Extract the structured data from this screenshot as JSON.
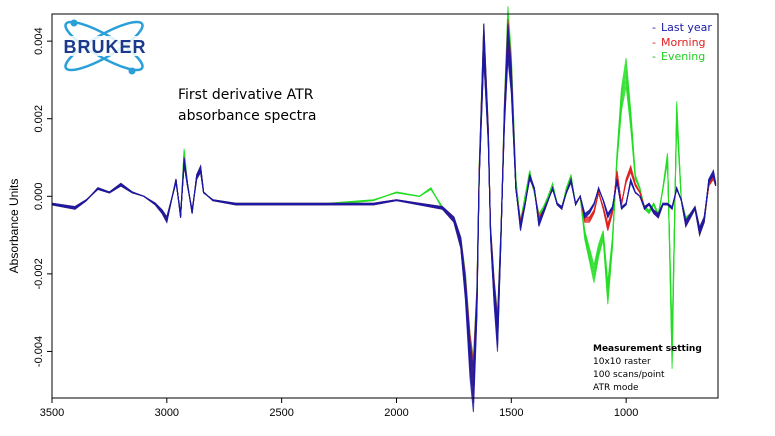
{
  "logo": {
    "text": "BRUKER",
    "color": "#1b3a8c",
    "orbit_color": "#2a9fd8"
  },
  "annotation": {
    "title_line1": "First derivative ATR",
    "title_line2": "absorbance spectra"
  },
  "measurement": {
    "heading": "Measurement setting",
    "lines": [
      "10x10 raster",
      "100 scans/point",
      "ATR mode"
    ]
  },
  "chart_data": {
    "type": "line",
    "title": "",
    "xlabel": "",
    "ylabel": "Absorbance Units",
    "xlim": [
      3500,
      600
    ],
    "ylim": [
      -0.0052,
      0.0047
    ],
    "x_ticks": [
      3500,
      3000,
      2500,
      2000,
      1500,
      1000
    ],
    "x_tick_labels": [
      "3500",
      "3000",
      "2500",
      "2000",
      "1500",
      "1000"
    ],
    "y_ticks": [
      -0.004,
      -0.002,
      0.0,
      0.002,
      0.004
    ],
    "y_tick_labels": [
      "-0.004",
      "-0.002",
      "0.000",
      "0.002",
      "0.004"
    ],
    "grid": false,
    "legend_position": "top-right",
    "series": [
      {
        "name": "Last year",
        "color": "#1a1aa6",
        "x": [
          3500,
          3400,
          3350,
          3300,
          3250,
          3200,
          3150,
          3100,
          3050,
          3020,
          3000,
          2960,
          2940,
          2925,
          2910,
          2890,
          2870,
          2853,
          2840,
          2800,
          2700,
          2500,
          2300,
          2100,
          2000,
          1900,
          1800,
          1750,
          1720,
          1700,
          1680,
          1665,
          1650,
          1640,
          1620,
          1600,
          1590,
          1575,
          1560,
          1545,
          1530,
          1515,
          1500,
          1480,
          1460,
          1440,
          1420,
          1400,
          1380,
          1360,
          1340,
          1320,
          1300,
          1280,
          1260,
          1240,
          1220,
          1200,
          1180,
          1160,
          1140,
          1120,
          1100,
          1080,
          1060,
          1040,
          1020,
          1000,
          980,
          960,
          940,
          920,
          900,
          880,
          860,
          840,
          820,
          800,
          780,
          760,
          740,
          720,
          700,
          680,
          660,
          640,
          620,
          610
        ],
        "y": [
          -0.0002,
          -0.0003,
          -0.0001,
          0.0002,
          0.0001,
          0.0003,
          0.0001,
          0.0,
          -0.0002,
          -0.0004,
          -0.0006,
          0.0004,
          -0.0005,
          0.0009,
          0.0003,
          -0.0004,
          0.0005,
          0.0007,
          0.0001,
          -0.0001,
          -0.0002,
          -0.0002,
          -0.0002,
          -0.0002,
          -0.0001,
          -0.0002,
          -0.0003,
          -0.0006,
          -0.0012,
          -0.0024,
          -0.0042,
          -0.005,
          -0.0028,
          0.0005,
          0.004,
          0.0015,
          -0.001,
          -0.0025,
          -0.0036,
          -0.001,
          0.002,
          0.004,
          0.003,
          0.0002,
          -0.0008,
          -0.0002,
          0.0005,
          0.0002,
          -0.0007,
          -0.0004,
          -0.0001,
          0.0002,
          -0.0002,
          -0.0003,
          0.0001,
          0.0004,
          -0.0002,
          0.0,
          -0.0005,
          -0.0004,
          -0.0002,
          0.0002,
          -0.0001,
          -0.0005,
          -0.0003,
          0.0004,
          -0.0003,
          -0.0002,
          0.0004,
          0.0001,
          0.0,
          -0.0003,
          -0.0002,
          -0.0004,
          -0.0005,
          -0.0002,
          -0.0002,
          -0.0003,
          0.0002,
          -0.0001,
          -0.0007,
          -0.0005,
          -0.0003,
          -0.0009,
          -0.0006,
          0.0004,
          0.0006,
          0.0003
        ]
      },
      {
        "name": "Morning",
        "color": "#e02020",
        "x": [
          3500,
          3400,
          3350,
          3300,
          3250,
          3200,
          3150,
          3100,
          3050,
          3020,
          3000,
          2960,
          2940,
          2925,
          2910,
          2890,
          2870,
          2853,
          2840,
          2800,
          2700,
          2500,
          2300,
          2100,
          2000,
          1900,
          1800,
          1750,
          1720,
          1700,
          1680,
          1665,
          1650,
          1640,
          1620,
          1600,
          1590,
          1575,
          1560,
          1545,
          1530,
          1515,
          1500,
          1480,
          1460,
          1440,
          1420,
          1400,
          1380,
          1360,
          1340,
          1320,
          1300,
          1280,
          1260,
          1240,
          1220,
          1200,
          1180,
          1160,
          1140,
          1120,
          1100,
          1080,
          1060,
          1040,
          1020,
          1000,
          980,
          960,
          940,
          920,
          900,
          880,
          860,
          840,
          820,
          800,
          780,
          760,
          740,
          720,
          700,
          680,
          660,
          640,
          620,
          610
        ],
        "y": [
          -0.0002,
          -0.0003,
          -0.0001,
          0.0002,
          0.0001,
          0.0003,
          0.0001,
          0.0,
          -0.0002,
          -0.0004,
          -0.0006,
          0.0004,
          -0.0005,
          0.0009,
          0.0003,
          -0.0004,
          0.0005,
          0.0007,
          0.0001,
          -0.0001,
          -0.0002,
          -0.0002,
          -0.0002,
          -0.0002,
          -0.0001,
          -0.0002,
          -0.0003,
          -0.0006,
          -0.0012,
          -0.0023,
          -0.004,
          -0.0048,
          -0.0027,
          0.0006,
          0.004,
          0.0016,
          -0.0009,
          -0.0024,
          -0.0035,
          -0.001,
          0.0021,
          0.0041,
          0.0031,
          0.0002,
          -0.0007,
          -0.0002,
          0.0005,
          0.0002,
          -0.0006,
          -0.0004,
          -0.0001,
          0.0002,
          -0.0002,
          -0.0003,
          0.0001,
          0.0004,
          -0.0002,
          0.0,
          -0.0006,
          -0.0006,
          -0.0004,
          0.0001,
          -0.0003,
          -0.0008,
          -0.0004,
          0.0006,
          -0.0002,
          0.0004,
          0.0007,
          0.0003,
          0.0001,
          -0.0003,
          -0.0002,
          -0.0004,
          -0.0005,
          -0.0002,
          -0.0002,
          -0.0003,
          0.0002,
          -0.0001,
          -0.0007,
          -0.0005,
          -0.0003,
          -0.0009,
          -0.0006,
          0.0003,
          0.0005,
          0.0003
        ]
      },
      {
        "name": "Evening",
        "color": "#22dd22",
        "x": [
          3500,
          3400,
          3350,
          3300,
          3250,
          3200,
          3150,
          3100,
          3050,
          3020,
          3000,
          2960,
          2940,
          2925,
          2910,
          2890,
          2870,
          2853,
          2840,
          2800,
          2700,
          2500,
          2300,
          2100,
          2000,
          1900,
          1850,
          1800,
          1750,
          1720,
          1700,
          1680,
          1665,
          1650,
          1640,
          1620,
          1600,
          1590,
          1575,
          1560,
          1545,
          1530,
          1515,
          1500,
          1480,
          1460,
          1440,
          1420,
          1400,
          1380,
          1360,
          1340,
          1320,
          1300,
          1280,
          1260,
          1240,
          1220,
          1200,
          1180,
          1160,
          1140,
          1120,
          1100,
          1080,
          1060,
          1040,
          1020,
          1000,
          980,
          960,
          940,
          920,
          900,
          880,
          860,
          840,
          820,
          800,
          780,
          760,
          740,
          720,
          700,
          680,
          660,
          640,
          620,
          610
        ],
        "y": [
          -0.0002,
          -0.0003,
          -0.0001,
          0.0002,
          0.0001,
          0.0003,
          0.0001,
          0.0,
          -0.0002,
          -0.0004,
          -0.0006,
          0.0004,
          -0.0005,
          0.0011,
          0.0003,
          -0.0004,
          0.0005,
          0.0007,
          0.0001,
          -0.0001,
          -0.0002,
          -0.0002,
          -0.0002,
          -0.0001,
          0.0001,
          0.0,
          0.0002,
          -0.0003,
          -0.0006,
          -0.0012,
          -0.0022,
          -0.004,
          -0.0047,
          -0.0026,
          0.0007,
          0.004,
          0.0016,
          -0.0009,
          -0.0024,
          -0.0034,
          -0.0009,
          0.0022,
          0.0044,
          0.0033,
          0.0004,
          -0.0007,
          0.0,
          0.0006,
          0.0001,
          -0.0005,
          -0.0003,
          0.0,
          0.0003,
          -0.0002,
          -0.0003,
          0.0002,
          0.0005,
          -0.0002,
          0.0,
          -0.001,
          -0.0015,
          -0.002,
          -0.0014,
          -0.001,
          -0.0025,
          -0.0012,
          0.001,
          0.0025,
          0.0032,
          0.002,
          0.0005,
          0.0002,
          -0.0003,
          -0.0004,
          -0.0002,
          -0.0005,
          0.0002,
          0.001,
          -0.004,
          0.0022,
          -0.0001,
          -0.0006,
          -0.0005,
          -0.0003,
          -0.0009,
          -0.0006,
          0.0003,
          0.0005,
          0.0003
        ]
      }
    ]
  }
}
